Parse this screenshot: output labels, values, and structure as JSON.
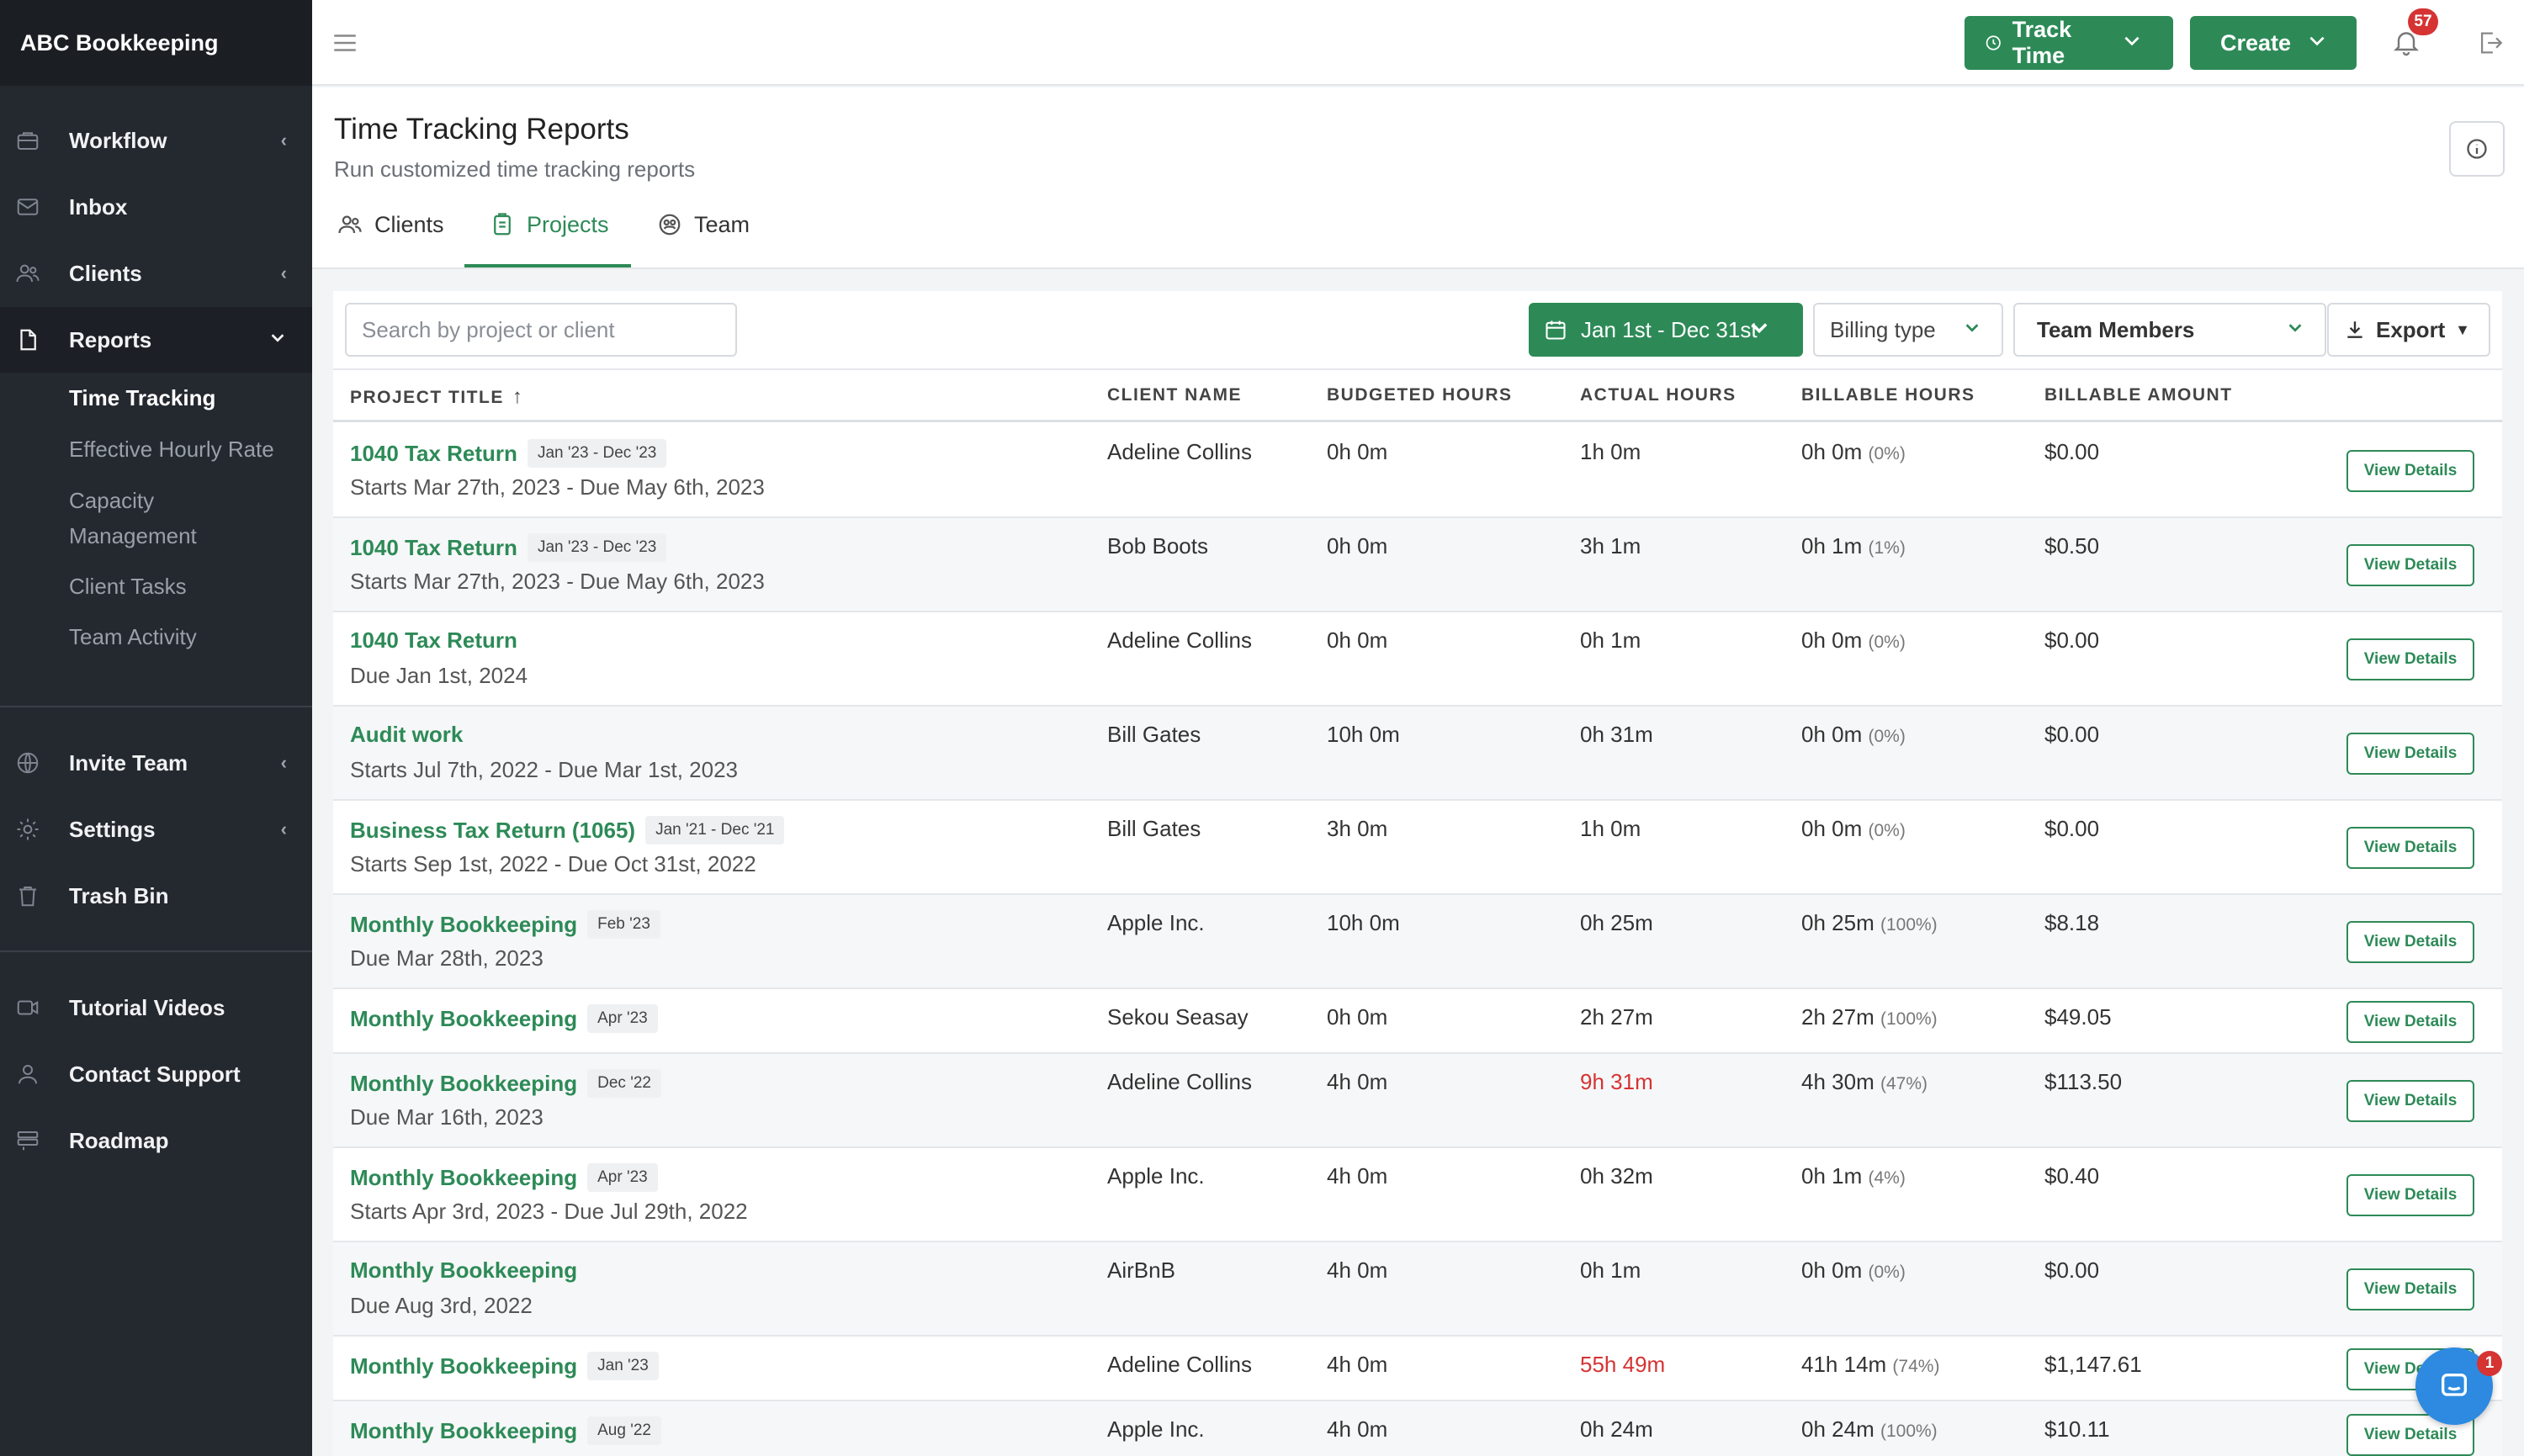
{
  "sidebar": {
    "brand": "ABC Bookkeeping",
    "items": [
      {
        "label": "Workflow",
        "icon": "briefcase-icon",
        "chevron": "‹"
      },
      {
        "label": "Inbox",
        "icon": "mail-icon",
        "chevron": ""
      },
      {
        "label": "Clients",
        "icon": "users-icon",
        "chevron": "‹"
      },
      {
        "label": "Reports",
        "icon": "document-icon",
        "chevron": "⌄"
      },
      {
        "label": "Invite Team",
        "icon": "globe-icon",
        "chevron": "‹"
      },
      {
        "label": "Settings",
        "icon": "gear-icon",
        "chevron": "‹"
      },
      {
        "label": "Trash Bin",
        "icon": "trash-icon",
        "chevron": ""
      },
      {
        "label": "Tutorial Videos",
        "icon": "video-icon",
        "chevron": ""
      },
      {
        "label": "Contact Support",
        "icon": "user-icon",
        "chevron": ""
      },
      {
        "label": "Roadmap",
        "icon": "roadmap-icon",
        "chevron": ""
      }
    ],
    "report_subitems": [
      {
        "label": "Time Tracking"
      },
      {
        "label": "Effective Hourly Rate"
      },
      {
        "label": "Capacity"
      },
      {
        "label": "Management"
      },
      {
        "label": "Client Tasks"
      },
      {
        "label": "Team Activity"
      }
    ]
  },
  "topbar": {
    "track_time": "Track Time",
    "create": "Create",
    "notification_count": "57",
    "accent": "#2d8a57"
  },
  "header": {
    "title": "Time Tracking Reports",
    "subtitle": "Run customized time tracking reports",
    "tabs": [
      {
        "label": "Clients"
      },
      {
        "label": "Projects"
      },
      {
        "label": "Team"
      }
    ]
  },
  "filters": {
    "search_placeholder": "Search by project or client",
    "date_range": "Jan 1st - Dec 31st",
    "billing_type": "Billing type",
    "team_members": "Team Members",
    "export": "Export"
  },
  "table": {
    "columns": [
      "PROJECT TITLE",
      "CLIENT NAME",
      "BUDGETED HOURS",
      "ACTUAL HOURS",
      "BILLABLE HOURS",
      "BILLABLE AMOUNT"
    ],
    "sort_arrow": "↑",
    "view_label": "View Details",
    "rows": [
      {
        "title": "1040 Tax Return",
        "chip": "Jan '23 - Dec '23",
        "dates": "Starts Mar 27th, 2023 - Due May 6th, 2023",
        "client": "Adeline Collins",
        "budgeted": "0h 0m",
        "actual": "1h 0m",
        "billable": "0h 0m",
        "pct": "(0%)",
        "amount": "$0.00"
      },
      {
        "title": "1040 Tax Return",
        "chip": "Jan '23 - Dec '23",
        "dates": "Starts Mar 27th, 2023 - Due May 6th, 2023",
        "client": "Bob Boots",
        "budgeted": "0h 0m",
        "actual": "3h 1m",
        "billable": "0h 1m",
        "pct": "(1%)",
        "amount": "$0.50"
      },
      {
        "title": "1040 Tax Return",
        "chip": "",
        "dates": "Due Jan 1st, 2024",
        "client": "Adeline Collins",
        "budgeted": "0h 0m",
        "actual": "0h 1m",
        "billable": "0h 0m",
        "pct": "(0%)",
        "amount": "$0.00"
      },
      {
        "title": "Audit work",
        "chip": "",
        "dates": "Starts Jul 7th, 2022 - Due Mar 1st, 2023",
        "client": "Bill Gates",
        "budgeted": "10h 0m",
        "actual": "0h 31m",
        "billable": "0h 0m",
        "pct": "(0%)",
        "amount": "$0.00"
      },
      {
        "title": "Business Tax Return (1065)",
        "chip": "Jan '21 - Dec '21",
        "dates": "Starts Sep 1st, 2022 - Due Oct 31st, 2022",
        "client": "Bill Gates",
        "budgeted": "3h 0m",
        "actual": "1h 0m",
        "billable": "0h 0m",
        "pct": "(0%)",
        "amount": "$0.00"
      },
      {
        "title": "Monthly Bookkeeping",
        "chip": "Feb '23",
        "dates": "Due Mar 28th, 2023",
        "client": "Apple Inc.",
        "budgeted": "10h 0m",
        "actual": "0h 25m",
        "billable": "0h 25m",
        "pct": "(100%)",
        "amount": "$8.18"
      },
      {
        "title": "Monthly Bookkeeping",
        "chip": "Apr '23",
        "dates": "",
        "client": "Sekou Seasay",
        "budgeted": "0h 0m",
        "actual": "2h 27m",
        "billable": "2h 27m",
        "pct": "(100%)",
        "amount": "$49.05"
      },
      {
        "title": "Monthly Bookkeeping",
        "chip": "Dec '22",
        "dates": "Due Mar 16th, 2023",
        "client": "Adeline Collins",
        "budgeted": "4h 0m",
        "actual": "9h 31m",
        "actual_over": true,
        "billable": "4h 30m",
        "pct": "(47%)",
        "amount": "$113.50"
      },
      {
        "title": "Monthly Bookkeeping",
        "chip": "Apr '23",
        "dates": "Starts Apr 3rd, 2023 - Due Jul 29th, 2022",
        "client": "Apple Inc.",
        "budgeted": "4h 0m",
        "actual": "0h 32m",
        "billable": "0h 1m",
        "pct": "(4%)",
        "amount": "$0.40"
      },
      {
        "title": "Monthly Bookkeeping",
        "chip": "",
        "dates": "Due Aug 3rd, 2022",
        "client": "AirBnB",
        "budgeted": "4h 0m",
        "actual": "0h 1m",
        "billable": "0h 0m",
        "pct": "(0%)",
        "amount": "$0.00"
      },
      {
        "title": "Monthly Bookkeeping",
        "chip": "Jan '23",
        "dates": "",
        "client": "Adeline Collins",
        "budgeted": "4h 0m",
        "actual": "55h 49m",
        "actual_over": true,
        "billable": "41h 14m",
        "pct": "(74%)",
        "amount": "$1,147.61"
      },
      {
        "title": "Monthly Bookkeeping",
        "chip": "Aug '22",
        "dates": "",
        "client": "Apple Inc.",
        "budgeted": "4h 0m",
        "actual": "0h 24m",
        "billable": "0h 24m",
        "pct": "(100%)",
        "amount": "$10.11"
      }
    ]
  },
  "chat": {
    "badge": "1"
  }
}
